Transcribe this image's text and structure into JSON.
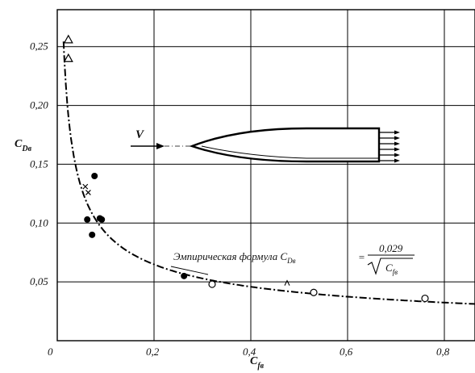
{
  "chart_data": {
    "type": "scatter",
    "title": "",
    "xlabel": "C",
    "xlabel_sub": "fв",
    "ylabel": "C",
    "ylabel_sub": "Dв",
    "xlim": [
      0,
      0.9
    ],
    "ylim": [
      0,
      0.28
    ],
    "grid": true,
    "x_ticks": [
      0,
      0.2,
      0.4,
      0.6,
      0.8
    ],
    "x_tick_labels": [
      "0",
      "0,2",
      "0,4",
      "0,6",
      "0,8"
    ],
    "y_ticks": [
      0.05,
      0.1,
      0.15,
      0.2,
      0.25
    ],
    "y_tick_labels": [
      "0,05",
      "0,10",
      "0,15",
      "0,20",
      "0,25"
    ],
    "series": [
      {
        "marker": "filled-circle",
        "x": [
          0.062,
          0.077,
          0.088,
          0.092,
          0.262,
          0.072
        ],
        "y": [
          0.103,
          0.14,
          0.104,
          0.103,
          0.055,
          0.09
        ]
      },
      {
        "marker": "open-circle",
        "x": [
          0.32,
          0.53,
          0.76
        ],
        "y": [
          0.048,
          0.041,
          0.036
        ]
      },
      {
        "marker": "cross",
        "x": [
          0.058,
          0.064
        ],
        "y": [
          0.131,
          0.126
        ]
      },
      {
        "marker": "open-triangle",
        "x": [
          0.023,
          0.023
        ],
        "y": [
          0.256,
          0.24
        ]
      },
      {
        "marker": "caret",
        "x": [
          0.475
        ],
        "y": [
          0.049
        ]
      }
    ],
    "curve": {
      "style": "dash-dot",
      "coefficient": 0.029,
      "x_from": 0.013,
      "x_to": 0.9
    },
    "annotation": {
      "text": "Эмпирическая формула C",
      "text_sub": "Dв",
      "equals": "=",
      "numerator": "0,029",
      "denominator": "C",
      "denominator_sub": "fв"
    },
    "inset": {
      "velocity_label": "V"
    }
  }
}
